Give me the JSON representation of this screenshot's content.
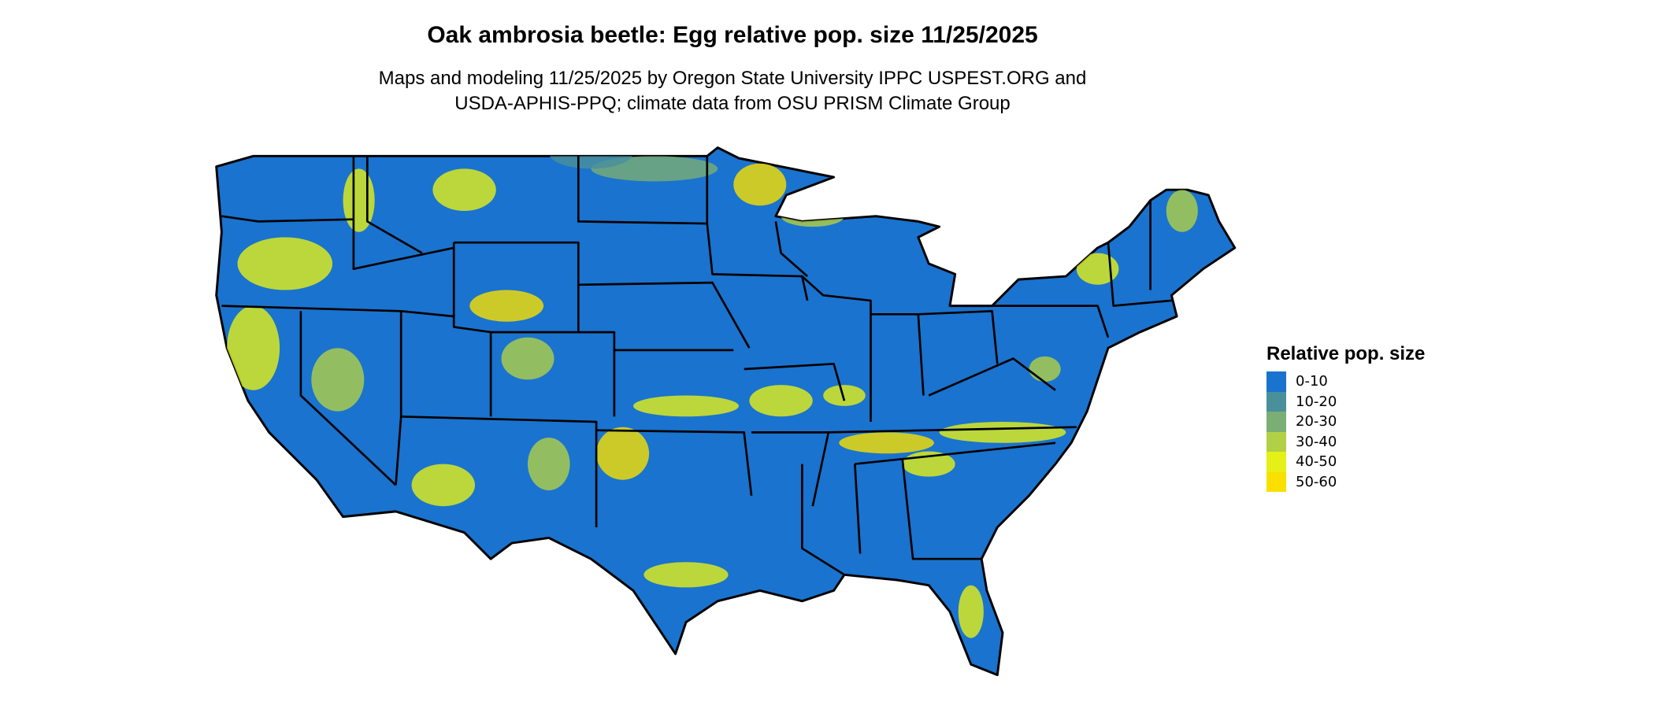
{
  "title": "Oak ambrosia beetle: Egg relative pop. size 11/25/2025",
  "subtitle_line1": "Maps and modeling 11/25/2025 by Oregon State University IPPC USPEST.ORG and",
  "subtitle_line2": "USDA-APHIS-PPQ; climate data from OSU PRISM Climate Group",
  "legend": {
    "title": "Relative pop. size",
    "items": [
      {
        "label": "0-10",
        "color": "#1A73CE"
      },
      {
        "label": "10-20",
        "color": "#4A909C"
      },
      {
        "label": "20-30",
        "color": "#7BAE74"
      },
      {
        "label": "30-40",
        "color": "#B2D046"
      },
      {
        "label": "40-50",
        "color": "#E5F016"
      },
      {
        "label": "50-60",
        "color": "#F9E000"
      }
    ]
  },
  "map": {
    "region": "Contiguous United States",
    "base_color": "#1A73CE",
    "border_color": "#000000"
  }
}
